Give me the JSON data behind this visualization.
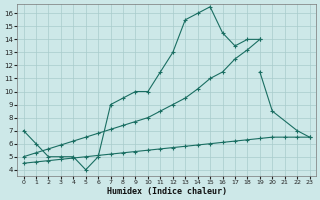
{
  "bg": "#cde8e8",
  "grid_color": "#a8cccc",
  "lc": "#1a6e62",
  "xlabel": "Humidex (Indice chaleur)",
  "xlim": [
    -0.5,
    23.5
  ],
  "ylim": [
    3.5,
    16.7
  ],
  "xticks": [
    0,
    1,
    2,
    3,
    4,
    5,
    6,
    7,
    8,
    9,
    10,
    11,
    12,
    13,
    14,
    15,
    16,
    17,
    18,
    19,
    20,
    21,
    22,
    23
  ],
  "yticks": [
    4,
    5,
    6,
    7,
    8,
    9,
    10,
    11,
    12,
    13,
    14,
    15,
    16
  ],
  "s1x": [
    0,
    1,
    2,
    3,
    4,
    5,
    6,
    7,
    8,
    9,
    10,
    11,
    12,
    13,
    14,
    15,
    16,
    17,
    18,
    19
  ],
  "s1y": [
    7.0,
    6.0,
    5.0,
    5.0,
    5.0,
    4.0,
    5.0,
    9.0,
    9.5,
    10.0,
    10.0,
    11.5,
    13.0,
    15.5,
    16.0,
    16.5,
    14.5,
    13.5,
    14.0,
    14.0
  ],
  "s2x": [
    19,
    20,
    21,
    22,
    23
  ],
  "s2y": [
    11.5,
    8.5,
    null,
    7.0,
    6.5
  ],
  "diag_x": [
    0,
    1,
    2,
    3,
    4,
    5,
    6,
    7,
    8,
    9,
    10,
    11,
    12,
    13,
    14,
    15,
    16,
    17,
    18,
    19
  ],
  "diag_y": [
    5.0,
    5.3,
    5.6,
    5.9,
    6.2,
    6.5,
    6.8,
    7.1,
    7.4,
    7.7,
    8.0,
    8.5,
    9.0,
    9.5,
    10.2,
    11.0,
    11.5,
    12.5,
    13.2,
    14.0
  ],
  "flat_x": [
    0,
    1,
    2,
    3,
    4,
    5,
    6,
    7,
    8,
    9,
    10,
    11,
    12,
    13,
    14,
    15,
    16,
    17,
    18,
    19,
    20,
    21,
    22,
    23
  ],
  "flat_y": [
    4.5,
    4.6,
    4.7,
    4.8,
    4.9,
    5.0,
    5.1,
    5.2,
    5.3,
    5.4,
    5.5,
    5.6,
    5.7,
    5.8,
    5.9,
    6.0,
    6.1,
    6.2,
    6.3,
    6.4,
    6.5,
    6.5,
    6.5,
    6.5
  ]
}
